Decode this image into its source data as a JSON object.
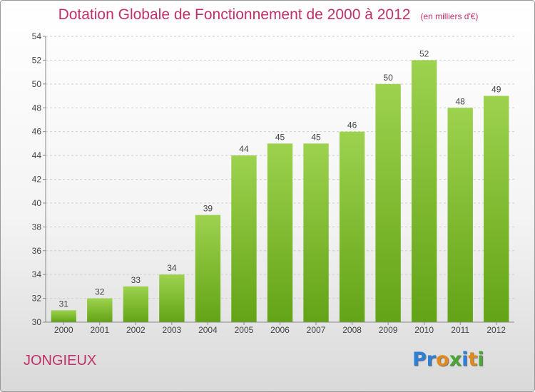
{
  "title": "Dotation Globale de Fonctionnement de 2000 à 2012",
  "subtitle": "(en milliers d'€)",
  "commune": "JONGIEUX",
  "brand": {
    "text": "Proxiti",
    "letter_colors": [
      "#2f7fd6",
      "#2f7fd6",
      "#e08a1e",
      "#4aa635",
      "#2f7fd6",
      "#e08a1e",
      "#4aa635"
    ]
  },
  "colors": {
    "bar_top": "#9dd24f",
    "bar_bottom": "#63a316",
    "text_accent": "#c0306a",
    "axis": "#888888",
    "grid": "#d0d0d0"
  },
  "chart_data": {
    "type": "bar",
    "title": "Dotation Globale de Fonctionnement de 2000 à 2012",
    "subtitle": "(en milliers d'€)",
    "categories": [
      "2000",
      "2001",
      "2002",
      "2003",
      "2004",
      "2005",
      "2006",
      "2007",
      "2008",
      "2009",
      "2010",
      "2011",
      "2012"
    ],
    "values": [
      31,
      32,
      33,
      34,
      39,
      44,
      45,
      45,
      46,
      50,
      52,
      48,
      49
    ],
    "ylim": [
      30,
      54
    ],
    "yticks": [
      30,
      32,
      34,
      36,
      38,
      40,
      42,
      44,
      46,
      48,
      50,
      52,
      54
    ],
    "grid": "horizontal dashed",
    "data_labels": true,
    "legend": "none"
  }
}
